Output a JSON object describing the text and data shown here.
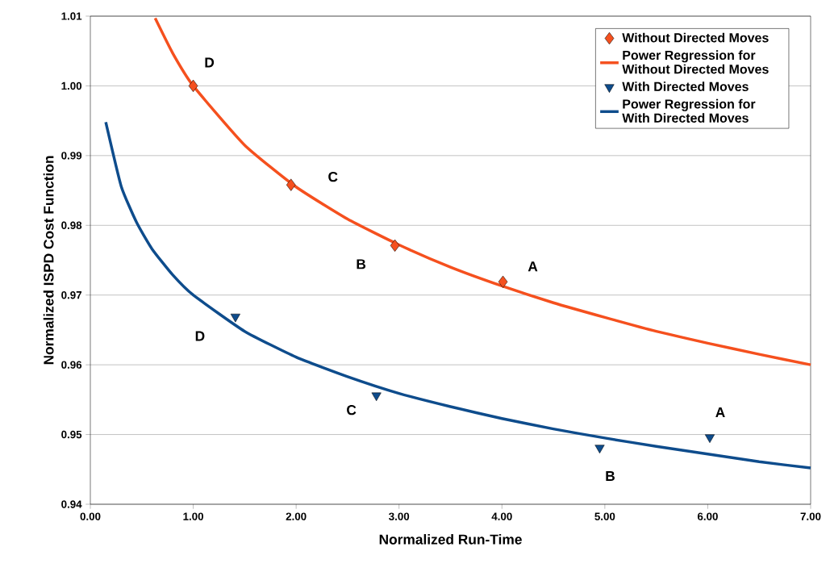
{
  "chart_data": {
    "type": "scatter",
    "xlabel": "Normalized Run-Time",
    "ylabel": "Normalized ISPD Cost Function",
    "xlim": [
      0,
      7
    ],
    "ylim": [
      0.94,
      1.01
    ],
    "xticks": [
      {
        "value": 0,
        "label": "0.00"
      },
      {
        "value": 1,
        "label": "1.00"
      },
      {
        "value": 2,
        "label": "2.00"
      },
      {
        "value": 3,
        "label": "3.00"
      },
      {
        "value": 4,
        "label": "4.00"
      },
      {
        "value": 5,
        "label": "5.00"
      },
      {
        "value": 6,
        "label": "6.00"
      },
      {
        "value": 7,
        "label": "7.00"
      }
    ],
    "yticks": [
      {
        "value": 0.94,
        "label": "0.94"
      },
      {
        "value": 0.95,
        "label": "0.95"
      },
      {
        "value": 0.96,
        "label": "0.96"
      },
      {
        "value": 0.97,
        "label": "0.97"
      },
      {
        "value": 0.98,
        "label": "0.98"
      },
      {
        "value": 0.99,
        "label": "0.99"
      },
      {
        "value": 1.0,
        "label": "1.00"
      },
      {
        "value": 1.01,
        "label": "1.01"
      }
    ],
    "grid": "y",
    "legend": "top right",
    "series": [
      {
        "name": "Without Directed Moves",
        "marker": "diamond",
        "color": "#f5501e",
        "x": [
          1.0,
          1.95,
          2.96,
          4.01
        ],
        "values": [
          1.0,
          0.9858,
          0.9771,
          0.9719
        ]
      },
      {
        "name": "Power Regression for Without Directed Moves",
        "type": "line",
        "marker": "none",
        "color": "#f5501e",
        "x": [
          0.63,
          0.8,
          1.0,
          1.5,
          2.0,
          2.5,
          3.0,
          3.5,
          4.0,
          4.5,
          5.0,
          5.5,
          6.0,
          6.5,
          7.0
        ],
        "values": [
          1.0097,
          1.0047,
          1.0,
          0.9915,
          0.9855,
          0.9809,
          0.9772,
          0.974,
          0.9713,
          0.9689,
          0.9668,
          0.9648,
          0.9631,
          0.9615,
          0.96
        ]
      },
      {
        "name": "With Directed Moves",
        "marker": "triangle",
        "color": "#0e4c8c",
        "x": [
          1.41,
          2.78,
          4.95,
          6.02
        ],
        "values": [
          0.9669,
          0.9556,
          0.9481,
          0.9496
        ]
      },
      {
        "name": "Power Regression for With Directed Moves",
        "type": "line",
        "marker": "none",
        "color": "#0e4c8c",
        "x": [
          0.15,
          0.3,
          0.45,
          0.6,
          0.8,
          1.0,
          1.5,
          2.0,
          2.5,
          3.0,
          3.5,
          4.0,
          4.5,
          5.0,
          5.5,
          6.0,
          6.5,
          7.0
        ],
        "values": [
          0.9948,
          0.9856,
          0.9804,
          0.9766,
          0.9729,
          0.97,
          0.9648,
          0.9611,
          0.9583,
          0.9559,
          0.954,
          0.9523,
          0.9508,
          0.9495,
          0.9483,
          0.9472,
          0.9461,
          0.9452
        ]
      }
    ],
    "annotations": [
      {
        "text": "D",
        "x": 1.0,
        "y": 1.0
      },
      {
        "text": "C",
        "x": 1.95,
        "y": 0.9858
      },
      {
        "text": "B",
        "x": 2.96,
        "y": 0.9771
      },
      {
        "text": "A",
        "x": 4.01,
        "y": 0.9719
      },
      {
        "text": "D",
        "x": 1.41,
        "y": 0.9669
      },
      {
        "text": "C",
        "x": 2.78,
        "y": 0.9556
      },
      {
        "text": "B",
        "x": 4.95,
        "y": 0.9481
      },
      {
        "text": "A",
        "x": 6.02,
        "y": 0.9496
      }
    ]
  }
}
